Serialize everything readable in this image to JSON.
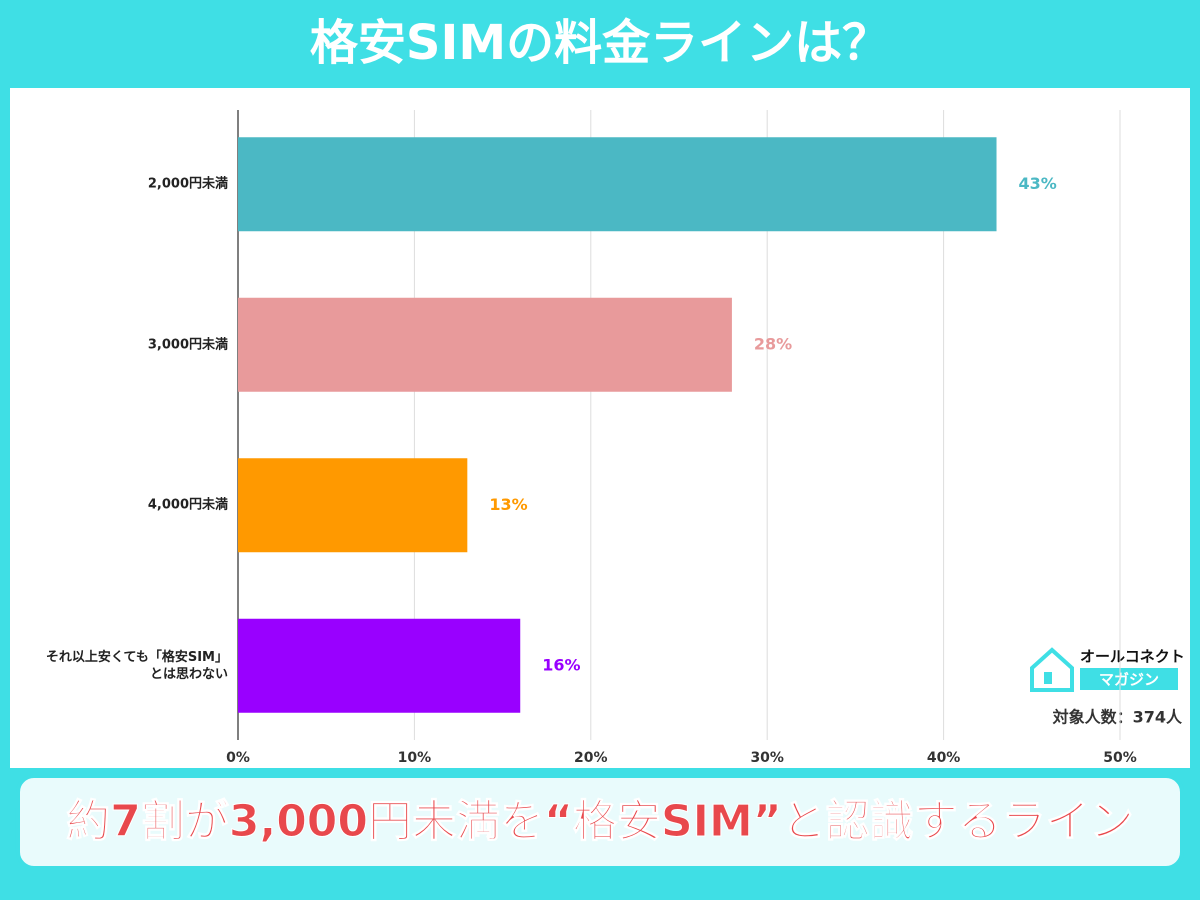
{
  "chart_data": {
    "type": "hbar",
    "title": "格安SIMの料金ラインは？",
    "categories": [
      "2,000円未満",
      "3,000円未満",
      "4,000円未満",
      "それ以上安くても「格安SIM」\nとは思わない"
    ],
    "values": [
      43,
      28,
      13,
      16
    ],
    "value_labels": [
      "43%",
      "28%",
      "13%",
      "16%"
    ],
    "colors": [
      "#4bb8c4",
      "#e89a9b",
      "#ff9900",
      "#9900ff"
    ],
    "xlim": [
      0,
      50
    ],
    "xticks": [
      {
        "value": 0,
        "label": "0%"
      },
      {
        "value": 10,
        "label": "10%"
      },
      {
        "value": 20,
        "label": "20%"
      },
      {
        "value": 30,
        "label": "30%"
      },
      {
        "value": 40,
        "label": "40%"
      },
      {
        "value": 50,
        "label": "50%"
      }
    ],
    "grid": true,
    "annotation": "対象人数：374人",
    "brand": {
      "name": "オールコネクト",
      "sub": "マガジン"
    },
    "banner": "約7割が3,000円未満を“格安SIM”と認識するライン"
  }
}
